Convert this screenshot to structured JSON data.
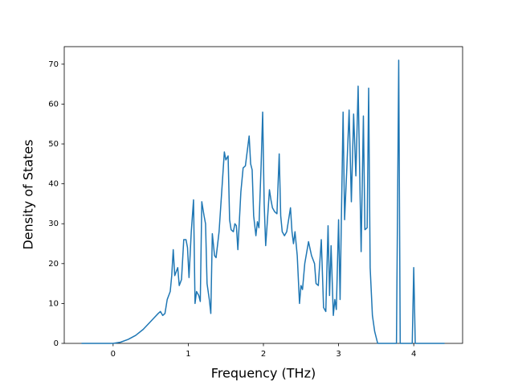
{
  "chart_data": {
    "type": "line",
    "xlabel": "Frequency (THz)",
    "ylabel": "Density of States",
    "x": [
      -0.42,
      0,
      0.1,
      0.2,
      0.3,
      0.4,
      0.5,
      0.55,
      0.6,
      0.63,
      0.66,
      0.69,
      0.72,
      0.76,
      0.78,
      0.8,
      0.82,
      0.86,
      0.88,
      0.91,
      0.94,
      0.97,
      0.99,
      1.01,
      1.04,
      1.07,
      1.09,
      1.11,
      1.14,
      1.16,
      1.18,
      1.21,
      1.23,
      1.25,
      1.28,
      1.3,
      1.32,
      1.35,
      1.37,
      1.41,
      1.48,
      1.5,
      1.53,
      1.55,
      1.57,
      1.6,
      1.62,
      1.64,
      1.66,
      1.7,
      1.73,
      1.76,
      1.81,
      1.83,
      1.85,
      1.87,
      1.9,
      1.92,
      1.94,
      1.97,
      1.99,
      2.01,
      2.03,
      2.05,
      2.08,
      2.1,
      2.12,
      2.15,
      2.18,
      2.21,
      2.23,
      2.25,
      2.28,
      2.31,
      2.36,
      2.38,
      2.4,
      2.42,
      2.45,
      2.48,
      2.5,
      2.52,
      2.55,
      2.6,
      2.64,
      2.68,
      2.7,
      2.73,
      2.77,
      2.8,
      2.83,
      2.86,
      2.88,
      2.9,
      2.93,
      2.95,
      2.97,
      3.0,
      3.02,
      3.06,
      3.08,
      3.11,
      3.14,
      3.17,
      3.2,
      3.23,
      3.26,
      3.3,
      3.33,
      3.35,
      3.38,
      3.4,
      3.42,
      3.45,
      3.48,
      3.52,
      3.77,
      3.8,
      3.82,
      3.98,
      4.0,
      4.02,
      4.41
    ],
    "series": [
      {
        "color": "#1f77b4",
        "values": [
          0,
          0,
          0.3,
          1,
          2,
          3.5,
          5.5,
          6.5,
          7.5,
          8,
          7,
          7.5,
          11,
          13,
          17,
          23.5,
          17,
          19,
          14.5,
          16,
          26,
          26,
          24,
          16.5,
          28,
          36,
          10,
          13,
          12,
          10.5,
          35.5,
          32,
          30,
          15,
          11,
          7.5,
          27.5,
          22,
          21.5,
          28,
          48,
          46,
          47,
          31,
          28.5,
          28,
          30,
          29.5,
          23.5,
          38,
          44,
          44.5,
          52,
          45,
          43.5,
          32,
          27,
          30.5,
          29,
          45,
          58,
          35,
          24.5,
          30,
          38.5,
          36,
          34,
          33,
          32.5,
          47.5,
          32,
          28,
          27,
          28,
          34,
          28,
          25,
          28,
          22,
          10,
          14.5,
          13.5,
          20,
          25.5,
          22,
          20,
          15,
          14.5,
          26,
          9,
          8,
          29.5,
          12,
          24.5,
          7,
          11,
          8.5,
          31,
          11,
          58,
          31,
          44,
          58.5,
          35.5,
          57.5,
          42,
          64.5,
          23,
          57,
          28.5,
          29,
          64,
          19,
          7,
          3,
          0,
          0,
          71,
          0,
          0,
          19,
          0,
          0
        ]
      }
    ],
    "xlim": [
      -0.65,
      4.65
    ],
    "xticks": [
      0,
      1,
      2,
      3,
      4
    ],
    "ylim": [
      0,
      74.4
    ],
    "yticks": [
      0,
      10,
      20,
      30,
      40,
      50,
      60,
      70
    ]
  }
}
